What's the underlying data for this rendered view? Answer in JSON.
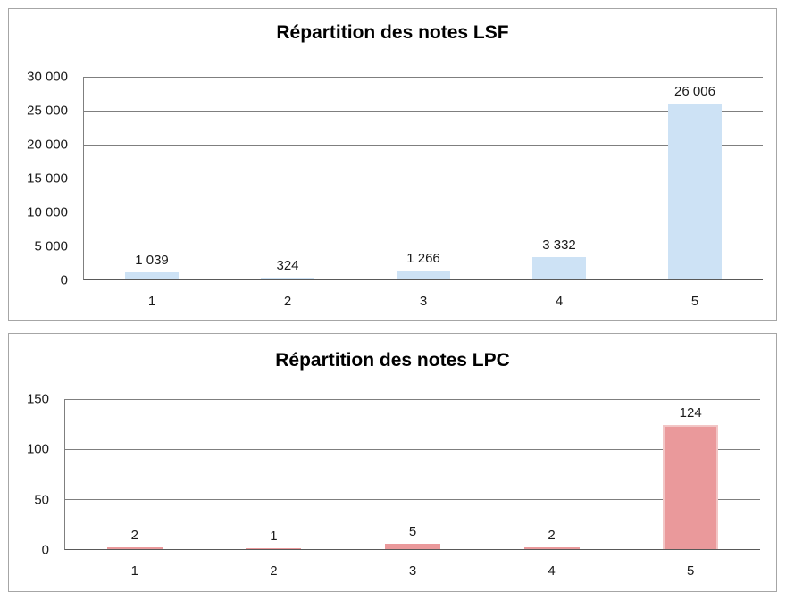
{
  "chart_data": [
    {
      "type": "bar",
      "title": "Répartition des notes LSF",
      "categories": [
        "1",
        "2",
        "3",
        "4",
        "5"
      ],
      "values": [
        1039,
        324,
        1266,
        3332,
        26006
      ],
      "value_labels": [
        "1 039",
        "324",
        "1 266",
        "3 332",
        "26 006"
      ],
      "y_ticks": [
        "30 000",
        "25 000",
        "20 000",
        "15 000",
        "10 000",
        "5 000",
        "0"
      ],
      "ylim": [
        0,
        30000
      ],
      "xlabel": "",
      "ylabel": "",
      "grid": true,
      "legend": false,
      "bar_fill": "#CDE2F5",
      "bar_border": "#CDE2F5"
    },
    {
      "type": "bar",
      "title": "Répartition des notes LPC",
      "categories": [
        "1",
        "2",
        "3",
        "4",
        "5"
      ],
      "values": [
        2,
        1,
        5,
        2,
        124
      ],
      "value_labels": [
        "2",
        "1",
        "5",
        "2",
        "124"
      ],
      "y_ticks": [
        "150",
        "100",
        "50",
        "0"
      ],
      "ylim": [
        0,
        150
      ],
      "xlabel": "",
      "ylabel": "",
      "grid": true,
      "legend": false,
      "bar_fill": "#EA999B",
      "bar_border": "#F2C6C6"
    }
  ],
  "colors": {
    "gridline": "#7F7F7F",
    "axis": "#595959",
    "panel_border": "#A6A6A6",
    "text": "#1A1A1A"
  }
}
